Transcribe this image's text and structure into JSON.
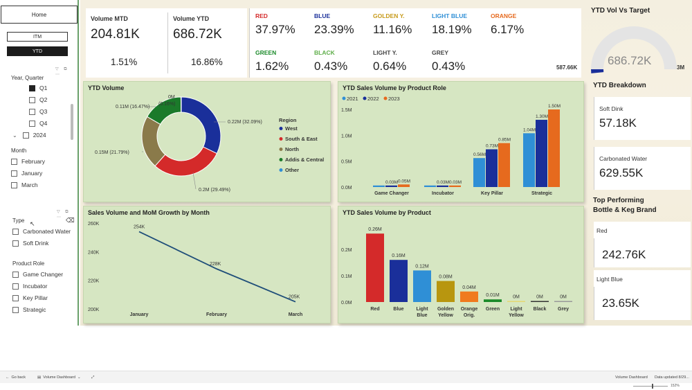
{
  "sidebar": {
    "home_label": "Home",
    "itm_label": "ITM",
    "ytd_label": "YTD",
    "year_quarter_title": "Year, Quarter",
    "quarters": [
      {
        "label": "Q1",
        "checked": true
      },
      {
        "label": "Q2",
        "checked": false
      },
      {
        "label": "Q3",
        "checked": false
      },
      {
        "label": "Q4",
        "checked": false
      }
    ],
    "year_label": "2024",
    "month_title": "Month",
    "months": [
      "February",
      "January",
      "March"
    ],
    "type_title": "Type",
    "types": [
      "Carbonated Water",
      "Soft Drink"
    ],
    "product_role_title": "Product Role",
    "product_roles": [
      "Game Changer",
      "Incubator",
      "Key Pillar",
      "Strategic"
    ]
  },
  "kpis": {
    "volume_mtd_title": "Volume MTD",
    "volume_mtd_value": "204.81K",
    "volume_mtd_growth": "1.51%",
    "volume_ytd_title": "Volume YTD",
    "volume_ytd_value": "686.72K",
    "volume_ytd_growth": "16.86%"
  },
  "color_shares": [
    {
      "label": "RED",
      "value": "37.97%",
      "color": "#d42a2a"
    },
    {
      "label": "BLUE",
      "value": "23.39%",
      "color": "#1a2f9a"
    },
    {
      "label": "GOLDEN Y.",
      "value": "11.16%",
      "color": "#c79a1a"
    },
    {
      "label": "LIGHT BLUE",
      "value": "18.19%",
      "color": "#2f8fd6"
    },
    {
      "label": "ORANGE",
      "value": "6.17%",
      "color": "#e66a1e"
    },
    {
      "label": "GREEN",
      "value": "1.62%",
      "color": "#1b8a2a"
    },
    {
      "label": "BLACK",
      "value": "0.43%",
      "color": "#5fae4a"
    },
    {
      "label": "LIGHT Y.",
      "value": "0.64%",
      "color": "#444444"
    },
    {
      "label": "GREY",
      "value": "0.43%",
      "color": "#444444"
    }
  ],
  "gauge": {
    "title": "YTD Vol Vs Target",
    "value_label": "686.72K",
    "min_label": "587.66K",
    "max_label": "3M",
    "fraction": 0.23
  },
  "ytd_breakdown": {
    "title": "YTD Breakdown",
    "soft_drink_label": "Soft Dink",
    "soft_drink_value": "57.18K",
    "carbonated_label": "Carbonated Water",
    "carbonated_value": "629.55K"
  },
  "top_performing": {
    "title_line1": "Top Performing",
    "title_line2": "Bottle & Keg Brand",
    "first_label": "Red",
    "first_value": "242.76K",
    "second_label": "Light Blue",
    "second_value": "23.65K"
  },
  "donut": {
    "title": "YTD Volume",
    "legend_title": "Region",
    "labels_text": [
      "0.22M (32.09%)",
      "0.2M (29.49%)",
      "0.15M (21.79%)",
      "0.11M (16.47%)",
      "0M",
      "(0.16%)"
    ]
  },
  "role_chart": {
    "title": "YTD Sales Volume by Product Role"
  },
  "line_chart": {
    "title": "Sales Volume and MoM Growth by Month"
  },
  "product_chart": {
    "title": "YTD Sales Volume by Product"
  },
  "chart_data": [
    {
      "type": "pie",
      "title": "YTD Volume",
      "legend_title": "Region",
      "categories": [
        "West",
        "South & East",
        "North",
        "Addis & Central",
        "Other"
      ],
      "values": [
        0.22,
        0.2,
        0.15,
        0.11,
        0.0
      ],
      "percents": [
        32.09,
        29.49,
        21.79,
        16.47,
        0.16
      ],
      "colors": [
        "#1a2f9a",
        "#d42a2a",
        "#8a7a4a",
        "#1b7a2a",
        "#2f8fd6"
      ]
    },
    {
      "type": "bar",
      "title": "YTD Sales Volume by Product Role",
      "categories": [
        "Game Changer",
        "Incubator",
        "Key Pillar",
        "Strategic"
      ],
      "series": [
        {
          "name": "2021",
          "values": [
            0.03,
            0.03,
            0.56,
            1.04
          ],
          "labels": [
            "",
            "",
            "0.56M",
            "1.04M"
          ],
          "color": "#2f8fd6"
        },
        {
          "name": "2022",
          "values": [
            0.03,
            0.03,
            0.73,
            1.3
          ],
          "labels": [
            "0.03M",
            "0.03M",
            "0.73M",
            "1.30M"
          ],
          "color": "#1a2f9a"
        },
        {
          "name": "2023",
          "values": [
            0.05,
            0.03,
            0.85,
            1.5
          ],
          "labels": [
            "0.05M",
            "0.03M",
            "0.85M",
            "1.50M"
          ],
          "color": "#e66a1e"
        }
      ],
      "ylim": [
        0,
        1.5
      ],
      "yticks": [
        "0.0M",
        "0.5M",
        "1.0M",
        "1.5M"
      ],
      "ytick_values": [
        0,
        0.5,
        1.0,
        1.5
      ],
      "legend": "top-left"
    },
    {
      "type": "line",
      "title": "Sales Volume and MoM Growth by Month",
      "x": [
        "January",
        "February",
        "March"
      ],
      "y": [
        254,
        228,
        205
      ],
      "labels": [
        "254K",
        "228K",
        "205K"
      ],
      "ylim": [
        200,
        260
      ],
      "yticks": [
        "200K",
        "220K",
        "240K",
        "260K"
      ],
      "ytick_values": [
        200,
        220,
        240,
        260
      ],
      "color": "#1f4e79"
    },
    {
      "type": "bar",
      "title": "YTD Sales Volume by Product",
      "categories": [
        "Red",
        "Blue",
        "Light Blue",
        "Golden Yellow",
        "Orange Orig.",
        "Green",
        "Light Yellow",
        "Black",
        "Grey"
      ],
      "category_lines": [
        [
          "Red"
        ],
        [
          "Blue"
        ],
        [
          "Light",
          "Blue"
        ],
        [
          "Golden",
          "Yellow"
        ],
        [
          "Orange",
          "Orig."
        ],
        [
          "Green"
        ],
        [
          "Light",
          "Yellow"
        ],
        [
          "Black"
        ],
        [
          "Grey"
        ]
      ],
      "values": [
        0.26,
        0.16,
        0.12,
        0.08,
        0.04,
        0.01,
        0.0,
        0.0,
        0.0
      ],
      "labels": [
        "0.26M",
        "0.16M",
        "0.12M",
        "0.08M",
        "0.04M",
        "0.01M",
        "0M",
        "0M",
        "0M"
      ],
      "colors": [
        "#d42a2a",
        "#1a2f9a",
        "#2f8fd6",
        "#b8960f",
        "#f07a1e",
        "#1b8a2a",
        "#e6d870",
        "#333333",
        "#999999"
      ],
      "ylim": [
        0,
        0.3
      ],
      "yticks": [
        "0.0M",
        "0.1M",
        "0.2M"
      ],
      "ytick_values": [
        0,
        0.1,
        0.2
      ]
    }
  ],
  "bottombar": {
    "go_back": "Go back",
    "page_name": "Volume Dashboard",
    "right_page": "Volume Dashboard",
    "updated": "Data updated 8/29...",
    "zoom": "152%"
  }
}
